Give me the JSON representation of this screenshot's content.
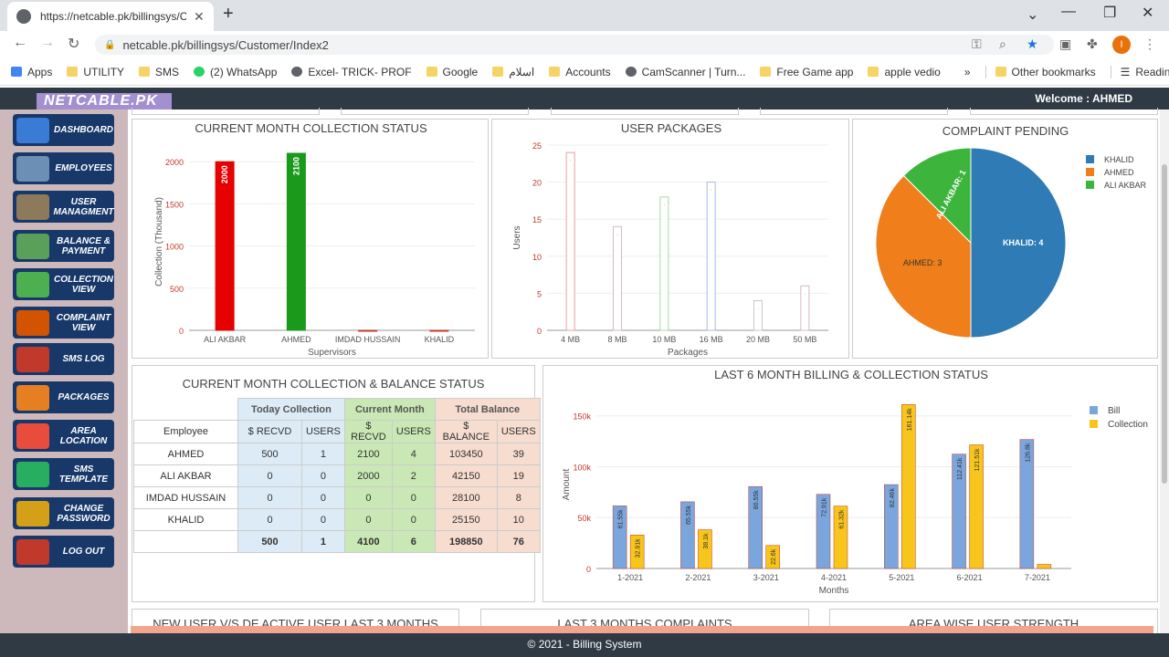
{
  "browser": {
    "tab_title": "https://netcable.pk/billingsys/Cu",
    "url": "netcable.pk/billingsys/Customer/Index2",
    "profile_initial": "I",
    "bookmarks": [
      {
        "label": "Apps",
        "icon": "grid"
      },
      {
        "label": "UTILITY",
        "icon": "folder"
      },
      {
        "label": "SMS",
        "icon": "folder"
      },
      {
        "label": "(2) WhatsApp",
        "icon": "wa"
      },
      {
        "label": "Excel- TRICK- PROF",
        "icon": "gl"
      },
      {
        "label": "Google",
        "icon": "folder"
      },
      {
        "label": "اسلام",
        "icon": "folder"
      },
      {
        "label": "Accounts",
        "icon": "folder"
      },
      {
        "label": "CamScanner | Turn...",
        "icon": "gl"
      },
      {
        "label": "Free Game app",
        "icon": "folder"
      },
      {
        "label": "apple vedio",
        "icon": "folder"
      }
    ],
    "more_bookmarks": "»",
    "other_bookmarks": "Other bookmarks",
    "reading_list": "Reading list"
  },
  "header": {
    "logo": "NETCABLE.PK",
    "welcome": "Welcome : AHMED"
  },
  "sidebar": [
    {
      "label": "DASHBOARD",
      "icon": "dashboard-icon",
      "color": "#3a7bd5"
    },
    {
      "label": "EMPLOYEES",
      "icon": "employees-icon",
      "color": "#6b8fb5"
    },
    {
      "label": "USER MANAGMENT",
      "icon": "user-management-icon",
      "color": "#8c7a5b"
    },
    {
      "label": "BALANCE & PAYMENT",
      "icon": "balance-icon",
      "color": "#5aa05a"
    },
    {
      "label": "COLLECTION VIEW",
      "icon": "collection-icon",
      "color": "#4caf50"
    },
    {
      "label": "COMPLAINT VIEW",
      "icon": "complaint-icon",
      "color": "#d35400"
    },
    {
      "label": "SMS LOG",
      "icon": "sms-icon",
      "color": "#c0392b"
    },
    {
      "label": "PACKAGES",
      "icon": "packages-icon",
      "color": "#e67e22"
    },
    {
      "label": "AREA LOCATION",
      "icon": "area-icon",
      "color": "#e74c3c"
    },
    {
      "label": "SMS TEMPLATE",
      "icon": "sms-template-icon",
      "color": "#27ae60"
    },
    {
      "label": "CHANGE PASSWORD",
      "icon": "key-icon",
      "color": "#d4a017"
    },
    {
      "label": "LOG OUT",
      "icon": "power-icon",
      "color": "#c0392b"
    }
  ],
  "chart_data": [
    {
      "type": "bar",
      "title": "CURRENT MONTH COLLECTION STATUS",
      "xlabel": "Supervisors",
      "ylabel": "Collection (Thousand)",
      "categories": [
        "ALI AKBAR",
        "AHMED",
        "IMDAD HUSSAIN",
        "KHALID"
      ],
      "values": [
        2000,
        2100,
        0,
        0
      ],
      "colors": [
        "#e60000",
        "#1a9a1a",
        "#c0392b",
        "#c0392b"
      ],
      "ylim": [
        0,
        2100
      ],
      "yticks": [
        0,
        500,
        1000,
        1500,
        2000
      ],
      "data_labels": [
        "2000",
        "2100",
        "",
        ""
      ]
    },
    {
      "type": "bar",
      "title": "USER PACKAGES",
      "xlabel": "Packages",
      "ylabel": "Users",
      "categories": [
        "4 MB",
        "8 MB",
        "10 MB",
        "16 MB",
        "20 MB",
        "50 MB"
      ],
      "values": [
        24,
        14,
        18,
        20,
        4,
        6
      ],
      "colors": [
        "#e8a0a0",
        "#d8b8c0",
        "#a8d8a8",
        "#a8b8e8",
        "#c8c8c8",
        "#d8b8c0"
      ],
      "ylim": [
        0,
        25
      ],
      "yticks": [
        0,
        5,
        10,
        15,
        20,
        25
      ]
    },
    {
      "type": "pie",
      "title": "COMPLAINT PENDING",
      "legend": "top-right",
      "slices": [
        {
          "name": "KHALID",
          "value": 4,
          "color": "#2e7bb5",
          "label": "KHALID: 4"
        },
        {
          "name": "AHMED",
          "value": 3,
          "color": "#f07f1b",
          "label": "AHMED: 3"
        },
        {
          "name": "ALI AKBAR",
          "value": 1,
          "color": "#3db53d",
          "label": "ALI AKBAR: 1"
        }
      ]
    },
    {
      "type": "bar",
      "title": "LAST 6 MONTH BILLING & COLLECTION STATUS",
      "xlabel": "Months",
      "ylabel": "Amount",
      "legend": "top-right",
      "categories": [
        "1-2021",
        "2-2021",
        "3-2021",
        "4-2021",
        "5-2021",
        "6-2021",
        "7-2021"
      ],
      "ylim": [
        0,
        165000
      ],
      "yticks": [
        {
          "v": 0,
          "l": "0"
        },
        {
          "v": 50000,
          "l": "50k"
        },
        {
          "v": 100000,
          "l": "100k"
        },
        {
          "v": 150000,
          "l": "150k"
        }
      ],
      "series": [
        {
          "name": "Bill",
          "color": "#7aa6dd",
          "values": [
            61550,
            65550,
            80550,
            72910,
            82460,
            112410,
            126800
          ],
          "labels": [
            "61.55k",
            "65.55k",
            "80.55k",
            "72.91k",
            "82.46k",
            "112.41k",
            "126.8k"
          ]
        },
        {
          "name": "Collection",
          "color": "#f8c51c",
          "values": [
            32910,
            38100,
            22600,
            61320,
            161140,
            121510,
            4000
          ],
          "labels": [
            "32.91k",
            "38.1k",
            "22.6k",
            "61.32k",
            "161.14k",
            "121.51k",
            ""
          ]
        }
      ]
    }
  ],
  "table": {
    "title": "CURRENT MONTH COLLECTION & BALANCE STATUS",
    "groups": [
      "Today Collection",
      "Current Month",
      "Total Balance"
    ],
    "sub": [
      "Employee",
      "$ RECVD",
      "USERS",
      "$ RECVD",
      "USERS",
      "$ BALANCE",
      "USERS"
    ],
    "rows": [
      [
        "AHMED",
        "500",
        "1",
        "2100",
        "4",
        "103450",
        "39"
      ],
      [
        "ALI AKBAR",
        "0",
        "0",
        "2000",
        "2",
        "42150",
        "19"
      ],
      [
        "IMDAD HUSSAIN",
        "0",
        "0",
        "0",
        "0",
        "28100",
        "8"
      ],
      [
        "KHALID",
        "0",
        "0",
        "0",
        "0",
        "25150",
        "10"
      ]
    ],
    "totals": [
      "",
      "500",
      "1",
      "4100",
      "6",
      "198850",
      "76"
    ]
  },
  "bottom_panels": [
    "NEW USER V/S DE ACTIVE USER LAST 3 MONTHS",
    "LAST 3 MONTHS COMPLAINTS",
    "AREA WISE USER STRENGTH"
  ],
  "footer": "© 2021 - Billing System"
}
